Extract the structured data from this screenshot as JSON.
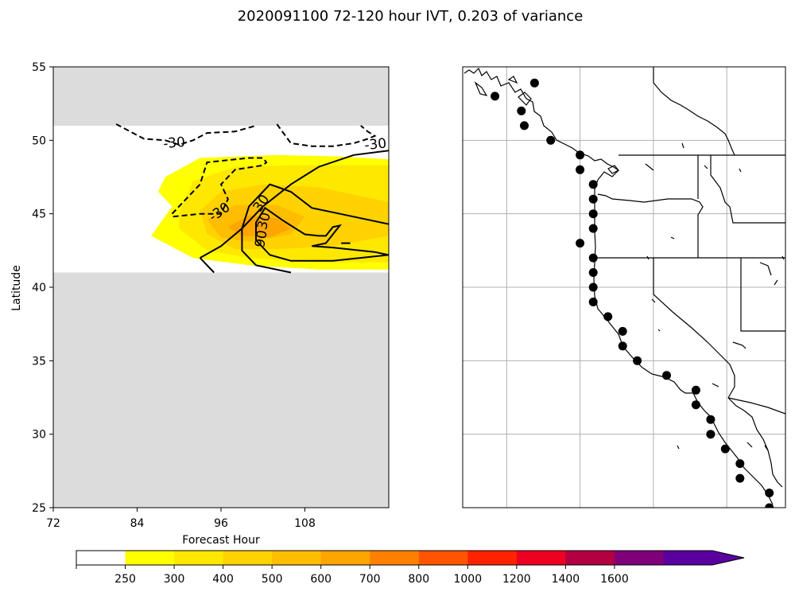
{
  "figure": {
    "title": "2020091100 72-120 hour IVT, 0.203 of variance"
  },
  "chart_data": [
    {
      "type": "heatmap",
      "panel": "left",
      "xlabel": "Forecast Hour",
      "ylabel": "Latitude",
      "xlim": [
        72,
        120
      ],
      "ylim": [
        25,
        55
      ],
      "x_ticks": [
        "72",
        "84",
        "96",
        "108"
      ],
      "y_ticks": [
        "25",
        "30",
        "35",
        "40",
        "45",
        "50",
        "55"
      ],
      "masked_color": "#dcdcdc",
      "valid_lat_range": [
        41,
        51
      ],
      "fill_levels": [
        {
          "min": 250,
          "color": "#ffff00",
          "polygon": [
            [
              88,
              47.5
            ],
            [
              93,
              48.8
            ],
            [
              104,
              49
            ],
            [
              113,
              48.9
            ],
            [
              120,
              48.7
            ],
            [
              120,
              41.2
            ],
            [
              110,
              41.2
            ],
            [
              100,
              41.5
            ],
            [
              92,
              42
            ],
            [
              86,
              43.5
            ],
            [
              89,
              45.5
            ],
            [
              87,
              46.5
            ]
          ]
        },
        {
          "min": 300,
          "color": "#ffe800",
          "polygon": [
            [
              90,
              45
            ],
            [
              92,
              47.2
            ],
            [
              98,
              48.2
            ],
            [
              106,
              48.3
            ],
            [
              113,
              48.3
            ],
            [
              120,
              48.3
            ],
            [
              120,
              41.7
            ],
            [
              110,
              41.7
            ],
            [
              100,
              42
            ],
            [
              94,
              42.5
            ],
            [
              90,
              44
            ]
          ]
        },
        {
          "min": 400,
          "color": "#ffd200",
          "polygon": [
            [
              93,
              45.2
            ],
            [
              96,
              46.5
            ],
            [
              102,
              47
            ],
            [
              110,
              46.8
            ],
            [
              116,
              46.2
            ],
            [
              120,
              45.8
            ],
            [
              120,
              43.5
            ],
            [
              112,
              42.8
            ],
            [
              104,
              42.6
            ],
            [
              98,
              42.6
            ],
            [
              94,
              43.6
            ]
          ]
        },
        {
          "min": 500,
          "color": "#ffbd00",
          "polygon": [
            [
              94,
              44.6
            ],
            [
              98,
              45.6
            ],
            [
              104,
              45.6
            ],
            [
              108,
              44.8
            ],
            [
              106,
              43.6
            ],
            [
              100,
              43.1
            ],
            [
              96,
              43.4
            ]
          ]
        },
        {
          "min": 600,
          "color": "#ffa500",
          "polygon": [
            [
              97,
              44.1
            ],
            [
              100,
              44.9
            ],
            [
              104,
              44.7
            ],
            [
              106,
              44
            ],
            [
              103,
              43.4
            ],
            [
              99,
              43.5
            ]
          ]
        }
      ],
      "contours": [
        {
          "label": "-30",
          "style": "dashed",
          "points": [
            [
              81,
              51.1
            ],
            [
              85,
              50.1
            ],
            [
              88,
              50
            ],
            [
              90,
              49.7
            ],
            [
              92,
              50
            ],
            [
              94,
              50.5
            ],
            [
              98,
              50.6
            ],
            [
              101,
              51
            ]
          ]
        },
        {
          "label": "-30",
          "style": "dashed",
          "points": [
            [
              104,
              51.1
            ],
            [
              106,
              49.8
            ],
            [
              109,
              49.6
            ],
            [
              112,
              49.6
            ],
            [
              115,
              49.8
            ],
            [
              117,
              50.1
            ],
            [
              118,
              50.3
            ],
            [
              117,
              50.6
            ],
            [
              116,
              51
            ]
          ]
        },
        {
          "label": "-30",
          "style": "dashed",
          "points": [
            [
              89,
              45
            ],
            [
              91,
              46
            ],
            [
              93,
              47
            ],
            [
              94,
              48.5
            ],
            [
              100,
              48.8
            ],
            [
              102,
              48.8
            ],
            [
              102.5,
              48.5
            ],
            [
              102,
              48.3
            ],
            [
              98,
              48
            ],
            [
              96,
              47
            ],
            [
              97,
              46
            ],
            [
              96,
              45
            ],
            [
              93,
              45
            ],
            [
              89,
              44.8
            ]
          ]
        },
        {
          "label": "30",
          "style": "solid",
          "points": [
            [
              93,
              42
            ],
            [
              96,
              42.8
            ],
            [
              99,
              44
            ],
            [
              102,
              45.5
            ],
            [
              106,
              47
            ],
            [
              110,
              48.2
            ],
            [
              115,
              49
            ],
            [
              120,
              49.3
            ]
          ]
        },
        {
          "label": "30",
          "style": "solid",
          "points": [
            [
              95,
              41
            ],
            [
              93,
              42
            ]
          ]
        },
        {
          "label": "",
          "style": "solid",
          "points": [
            [
              106,
              41
            ],
            [
              101,
              41.5
            ],
            [
              99,
              42.5
            ],
            [
              99,
              44
            ],
            [
              100,
              45.5
            ],
            [
              103,
              47
            ],
            [
              106,
              46.5
            ],
            [
              109,
              45.4
            ],
            [
              112,
              45.1
            ],
            [
              120,
              44.3
            ]
          ]
        },
        {
          "label": "90",
          "style": "solid",
          "points": [
            [
              101,
              43.2
            ],
            [
              101,
              44.4
            ],
            [
              102.3,
              45.4
            ],
            [
              105,
              44.5
            ],
            [
              108,
              43.6
            ],
            [
              110,
              43.5
            ],
            [
              111,
              43.5
            ],
            [
              112,
              44.1
            ],
            [
              113,
              44.2
            ],
            [
              111,
              43
            ],
            [
              109,
              42.8
            ],
            [
              112,
              42.7
            ],
            [
              118,
              42.4
            ],
            [
              120,
              42.2
            ],
            [
              112,
              41.8
            ],
            [
              106,
              41.8
            ],
            [
              103,
              42.2
            ],
            [
              101,
              43.2
            ]
          ]
        },
        {
          "label": "",
          "style": "solid",
          "points": [
            [
              113.2,
              43
            ],
            [
              114.5,
              43
            ]
          ]
        }
      ],
      "contour_labels": [
        {
          "text": "-30",
          "x": 89.3,
          "y": 49.8,
          "angle": -5
        },
        {
          "text": "-30",
          "x": 118.1,
          "y": 49.7,
          "angle": -6
        },
        {
          "text": "-30",
          "x": 95.8,
          "y": 45.1,
          "angle": -35
        },
        {
          "text": "30",
          "x": 101.8,
          "y": 45.7,
          "angle": -55
        },
        {
          "text": "30",
          "x": 102.2,
          "y": 44.5,
          "angle": -75
        },
        {
          "text": "90",
          "x": 101.8,
          "y": 43.3,
          "angle": -80
        }
      ]
    },
    {
      "type": "scatter",
      "panel": "right",
      "description_key": "map",
      "xlim": [
        -131,
        -109
      ],
      "ylim": [
        25,
        55
      ],
      "gridlines_x": [
        -128,
        -123,
        -118,
        -113
      ],
      "gridlines_y": [
        30,
        35,
        40,
        45,
        50
      ],
      "points": [
        [
          -126.1,
          53.9
        ],
        [
          -128.8,
          53
        ],
        [
          -127,
          52
        ],
        [
          -126.8,
          51
        ],
        [
          -125,
          50
        ],
        [
          -123,
          49
        ],
        [
          -123,
          48
        ],
        [
          -122.1,
          47
        ],
        [
          -122.1,
          46
        ],
        [
          -122.1,
          45
        ],
        [
          -122.1,
          44
        ],
        [
          -123,
          43
        ],
        [
          -122.1,
          42
        ],
        [
          -122.1,
          41
        ],
        [
          -122.1,
          40
        ],
        [
          -122.1,
          39
        ],
        [
          -121.1,
          38
        ],
        [
          -120.1,
          37
        ],
        [
          -120.1,
          36
        ],
        [
          -119.1,
          35
        ],
        [
          -117.1,
          34
        ],
        [
          -115.1,
          33
        ],
        [
          -115.1,
          32
        ],
        [
          -114.1,
          31
        ],
        [
          -114.1,
          30
        ],
        [
          -113.1,
          29
        ],
        [
          -112.1,
          28
        ],
        [
          -112.1,
          27
        ],
        [
          -110.1,
          26
        ],
        [
          -110.1,
          25
        ]
      ]
    }
  ],
  "colorbar": {
    "tick_labels": [
      "250",
      "300",
      "400",
      "500",
      "600",
      "700",
      "800",
      "1000",
      "1200",
      "1400",
      "1600"
    ],
    "colors": [
      "#ffffff",
      "#ffff00",
      "#ffe800",
      "#ffd200",
      "#ffbd00",
      "#ffa500",
      "#ff8000",
      "#ff5500",
      "#ff2200",
      "#ee0022",
      "#b20040",
      "#80007a",
      "#5b00a0"
    ],
    "extend": "max"
  }
}
